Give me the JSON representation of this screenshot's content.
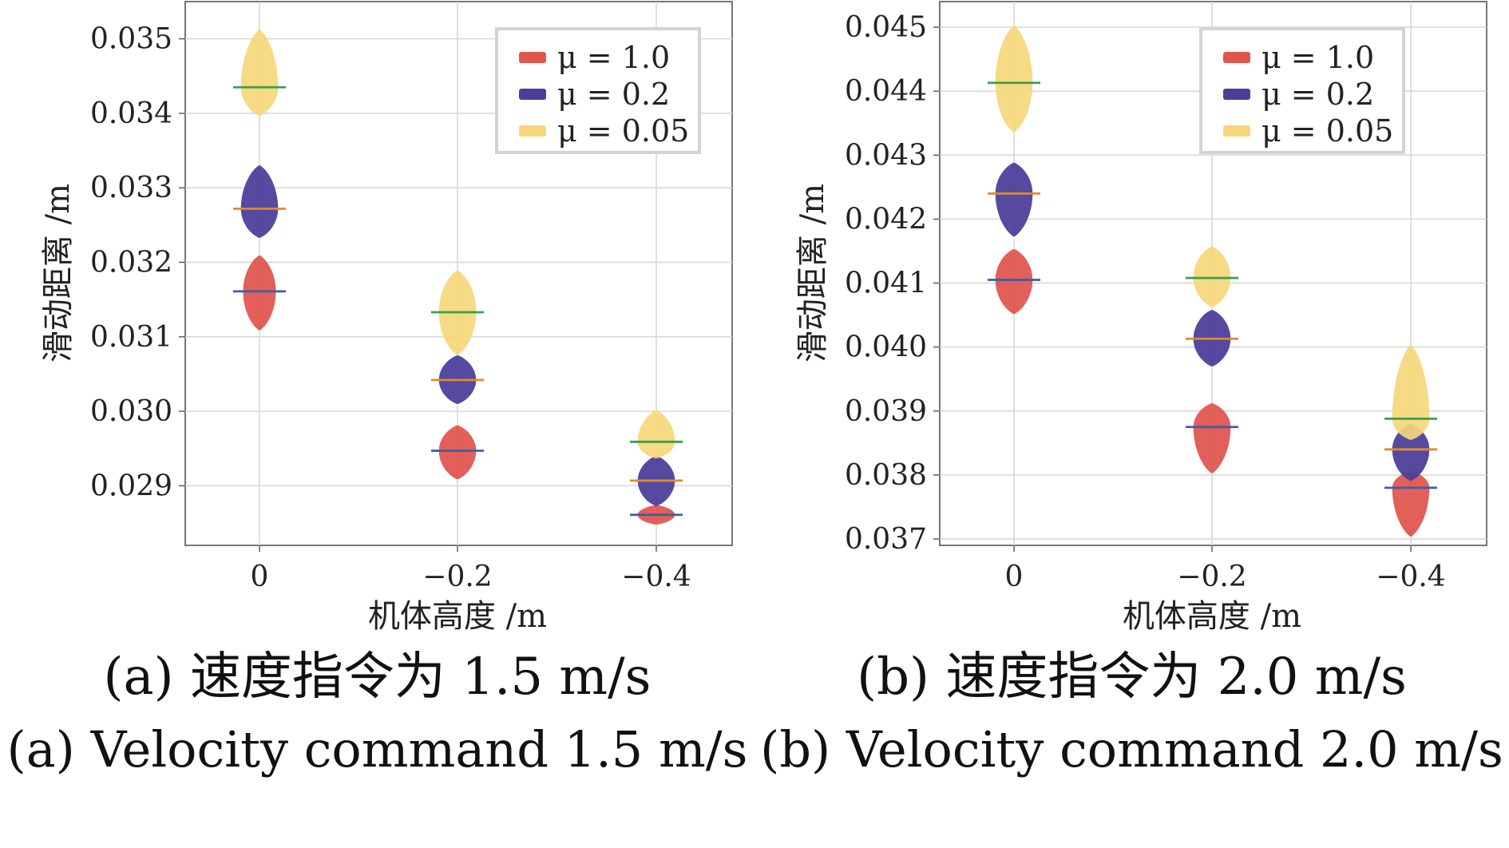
{
  "chart_data": [
    {
      "type": "violin",
      "xlabel": "机体高度 /m",
      "ylabel": "滑动距离 /m",
      "categories": [
        "0",
        "−0.2",
        "−0.4"
      ],
      "y_ticks": [
        "0.029",
        "0.030",
        "0.031",
        "0.032",
        "0.033",
        "0.034",
        "0.035"
      ],
      "ylim": [
        0.0282,
        0.0355
      ],
      "grid": true,
      "legend_position": "top-right",
      "series": [
        {
          "name": "μ = 1.0",
          "color": "#e0564f",
          "median_color": "#3c5ea8",
          "median": [
            0.03161,
            0.02947,
            0.02861
          ],
          "min": [
            0.03109,
            0.02909,
            0.02848
          ],
          "max": [
            0.03209,
            0.02981,
            0.02874
          ],
          "spread": [
            0.03,
            0.034,
            0.034
          ]
        },
        {
          "name": "μ = 0.2",
          "color": "#4b3f9a",
          "median_color": "#e08a2e",
          "median": [
            0.03272,
            0.03042,
            0.02907
          ],
          "min": [
            0.03233,
            0.0301,
            0.02873
          ],
          "max": [
            0.0333,
            0.03075,
            0.0294
          ],
          "spread": [
            0.034,
            0.034,
            0.034
          ]
        },
        {
          "name": "μ = 0.05",
          "color": "#f5d77a",
          "median_color": "#3aa04a",
          "median": [
            0.03435,
            0.03133,
            0.02959
          ],
          "min": [
            0.03397,
            0.03076,
            0.02937
          ],
          "max": [
            0.03512,
            0.03189,
            0.03001
          ],
          "spread": [
            0.034,
            0.034,
            0.034
          ]
        }
      ]
    },
    {
      "type": "violin",
      "xlabel": "机体高度 /m",
      "ylabel": "滑动距离 /m",
      "categories": [
        "0",
        "−0.2",
        "−0.4"
      ],
      "y_ticks": [
        "0.037",
        "0.038",
        "0.039",
        "0.040",
        "0.041",
        "0.042",
        "0.043",
        "0.044",
        "0.045"
      ],
      "ylim": [
        0.0369,
        0.0454
      ],
      "grid": true,
      "legend_position": "top-right",
      "series": [
        {
          "name": "μ = 1.0",
          "color": "#e0564f",
          "median_color": "#3c5ea8",
          "median": [
            0.04105,
            0.03875,
            0.0378
          ],
          "min": [
            0.04052,
            0.03803,
            0.03704
          ],
          "max": [
            0.04153,
            0.03912,
            0.03806
          ],
          "spread": [
            0.034,
            0.034,
            0.034
          ]
        },
        {
          "name": "μ = 0.2",
          "color": "#4b3f9a",
          "median_color": "#e08a2e",
          "median": [
            0.0424,
            0.04013,
            0.0384
          ],
          "min": [
            0.04173,
            0.0397,
            0.03791
          ],
          "max": [
            0.04288,
            0.04058,
            0.0388
          ],
          "spread": [
            0.034,
            0.034,
            0.034
          ]
        },
        {
          "name": "μ = 0.05",
          "color": "#f5d77a",
          "median_color": "#3aa04a",
          "median": [
            0.04413,
            0.04108,
            0.03888
          ],
          "min": [
            0.04336,
            0.04063,
            0.03855
          ],
          "max": [
            0.04502,
            0.04157,
            0.04003
          ],
          "spread": [
            0.034,
            0.034,
            0.034
          ]
        }
      ]
    }
  ],
  "captions": {
    "a_zh": "(a) 速度指令为 1.5 m/s",
    "a_en": "(a) Velocity command 1.5 m/s",
    "b_zh": "(b) 速度指令为 2.0 m/s",
    "b_en": "(b) Velocity command 2.0 m/s"
  }
}
